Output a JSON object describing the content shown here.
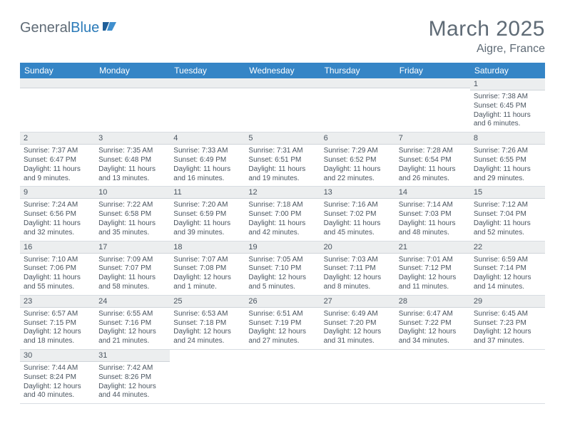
{
  "logo": {
    "text1": "General",
    "text2": "Blue"
  },
  "title": "March 2025",
  "location": "Aigre, France",
  "colors": {
    "header_bg": "#3585c6",
    "header_fg": "#ffffff",
    "daynum_bg": "#eceeef",
    "grid_line": "#3585c6",
    "body_text": "#4a5560",
    "title_text": "#5f6b76"
  },
  "weekdays": [
    "Sunday",
    "Monday",
    "Tuesday",
    "Wednesday",
    "Thursday",
    "Friday",
    "Saturday"
  ],
  "weeks": [
    [
      null,
      null,
      null,
      null,
      null,
      null,
      {
        "n": "1",
        "sunrise": "7:38 AM",
        "sunset": "6:45 PM",
        "daylight": "11 hours and 6 minutes."
      }
    ],
    [
      {
        "n": "2",
        "sunrise": "7:37 AM",
        "sunset": "6:47 PM",
        "daylight": "11 hours and 9 minutes."
      },
      {
        "n": "3",
        "sunrise": "7:35 AM",
        "sunset": "6:48 PM",
        "daylight": "11 hours and 13 minutes."
      },
      {
        "n": "4",
        "sunrise": "7:33 AM",
        "sunset": "6:49 PM",
        "daylight": "11 hours and 16 minutes."
      },
      {
        "n": "5",
        "sunrise": "7:31 AM",
        "sunset": "6:51 PM",
        "daylight": "11 hours and 19 minutes."
      },
      {
        "n": "6",
        "sunrise": "7:29 AM",
        "sunset": "6:52 PM",
        "daylight": "11 hours and 22 minutes."
      },
      {
        "n": "7",
        "sunrise": "7:28 AM",
        "sunset": "6:54 PM",
        "daylight": "11 hours and 26 minutes."
      },
      {
        "n": "8",
        "sunrise": "7:26 AM",
        "sunset": "6:55 PM",
        "daylight": "11 hours and 29 minutes."
      }
    ],
    [
      {
        "n": "9",
        "sunrise": "7:24 AM",
        "sunset": "6:56 PM",
        "daylight": "11 hours and 32 minutes."
      },
      {
        "n": "10",
        "sunrise": "7:22 AM",
        "sunset": "6:58 PM",
        "daylight": "11 hours and 35 minutes."
      },
      {
        "n": "11",
        "sunrise": "7:20 AM",
        "sunset": "6:59 PM",
        "daylight": "11 hours and 39 minutes."
      },
      {
        "n": "12",
        "sunrise": "7:18 AM",
        "sunset": "7:00 PM",
        "daylight": "11 hours and 42 minutes."
      },
      {
        "n": "13",
        "sunrise": "7:16 AM",
        "sunset": "7:02 PM",
        "daylight": "11 hours and 45 minutes."
      },
      {
        "n": "14",
        "sunrise": "7:14 AM",
        "sunset": "7:03 PM",
        "daylight": "11 hours and 48 minutes."
      },
      {
        "n": "15",
        "sunrise": "7:12 AM",
        "sunset": "7:04 PM",
        "daylight": "11 hours and 52 minutes."
      }
    ],
    [
      {
        "n": "16",
        "sunrise": "7:10 AM",
        "sunset": "7:06 PM",
        "daylight": "11 hours and 55 minutes."
      },
      {
        "n": "17",
        "sunrise": "7:09 AM",
        "sunset": "7:07 PM",
        "daylight": "11 hours and 58 minutes."
      },
      {
        "n": "18",
        "sunrise": "7:07 AM",
        "sunset": "7:08 PM",
        "daylight": "12 hours and 1 minute."
      },
      {
        "n": "19",
        "sunrise": "7:05 AM",
        "sunset": "7:10 PM",
        "daylight": "12 hours and 5 minutes."
      },
      {
        "n": "20",
        "sunrise": "7:03 AM",
        "sunset": "7:11 PM",
        "daylight": "12 hours and 8 minutes."
      },
      {
        "n": "21",
        "sunrise": "7:01 AM",
        "sunset": "7:12 PM",
        "daylight": "12 hours and 11 minutes."
      },
      {
        "n": "22",
        "sunrise": "6:59 AM",
        "sunset": "7:14 PM",
        "daylight": "12 hours and 14 minutes."
      }
    ],
    [
      {
        "n": "23",
        "sunrise": "6:57 AM",
        "sunset": "7:15 PM",
        "daylight": "12 hours and 18 minutes."
      },
      {
        "n": "24",
        "sunrise": "6:55 AM",
        "sunset": "7:16 PM",
        "daylight": "12 hours and 21 minutes."
      },
      {
        "n": "25",
        "sunrise": "6:53 AM",
        "sunset": "7:18 PM",
        "daylight": "12 hours and 24 minutes."
      },
      {
        "n": "26",
        "sunrise": "6:51 AM",
        "sunset": "7:19 PM",
        "daylight": "12 hours and 27 minutes."
      },
      {
        "n": "27",
        "sunrise": "6:49 AM",
        "sunset": "7:20 PM",
        "daylight": "12 hours and 31 minutes."
      },
      {
        "n": "28",
        "sunrise": "6:47 AM",
        "sunset": "7:22 PM",
        "daylight": "12 hours and 34 minutes."
      },
      {
        "n": "29",
        "sunrise": "6:45 AM",
        "sunset": "7:23 PM",
        "daylight": "12 hours and 37 minutes."
      }
    ],
    [
      {
        "n": "30",
        "sunrise": "7:44 AM",
        "sunset": "8:24 PM",
        "daylight": "12 hours and 40 minutes."
      },
      {
        "n": "31",
        "sunrise": "7:42 AM",
        "sunset": "8:26 PM",
        "daylight": "12 hours and 44 minutes."
      },
      null,
      null,
      null,
      null,
      null
    ]
  ],
  "labels": {
    "sunrise": "Sunrise: ",
    "sunset": "Sunset: ",
    "daylight": "Daylight: "
  }
}
